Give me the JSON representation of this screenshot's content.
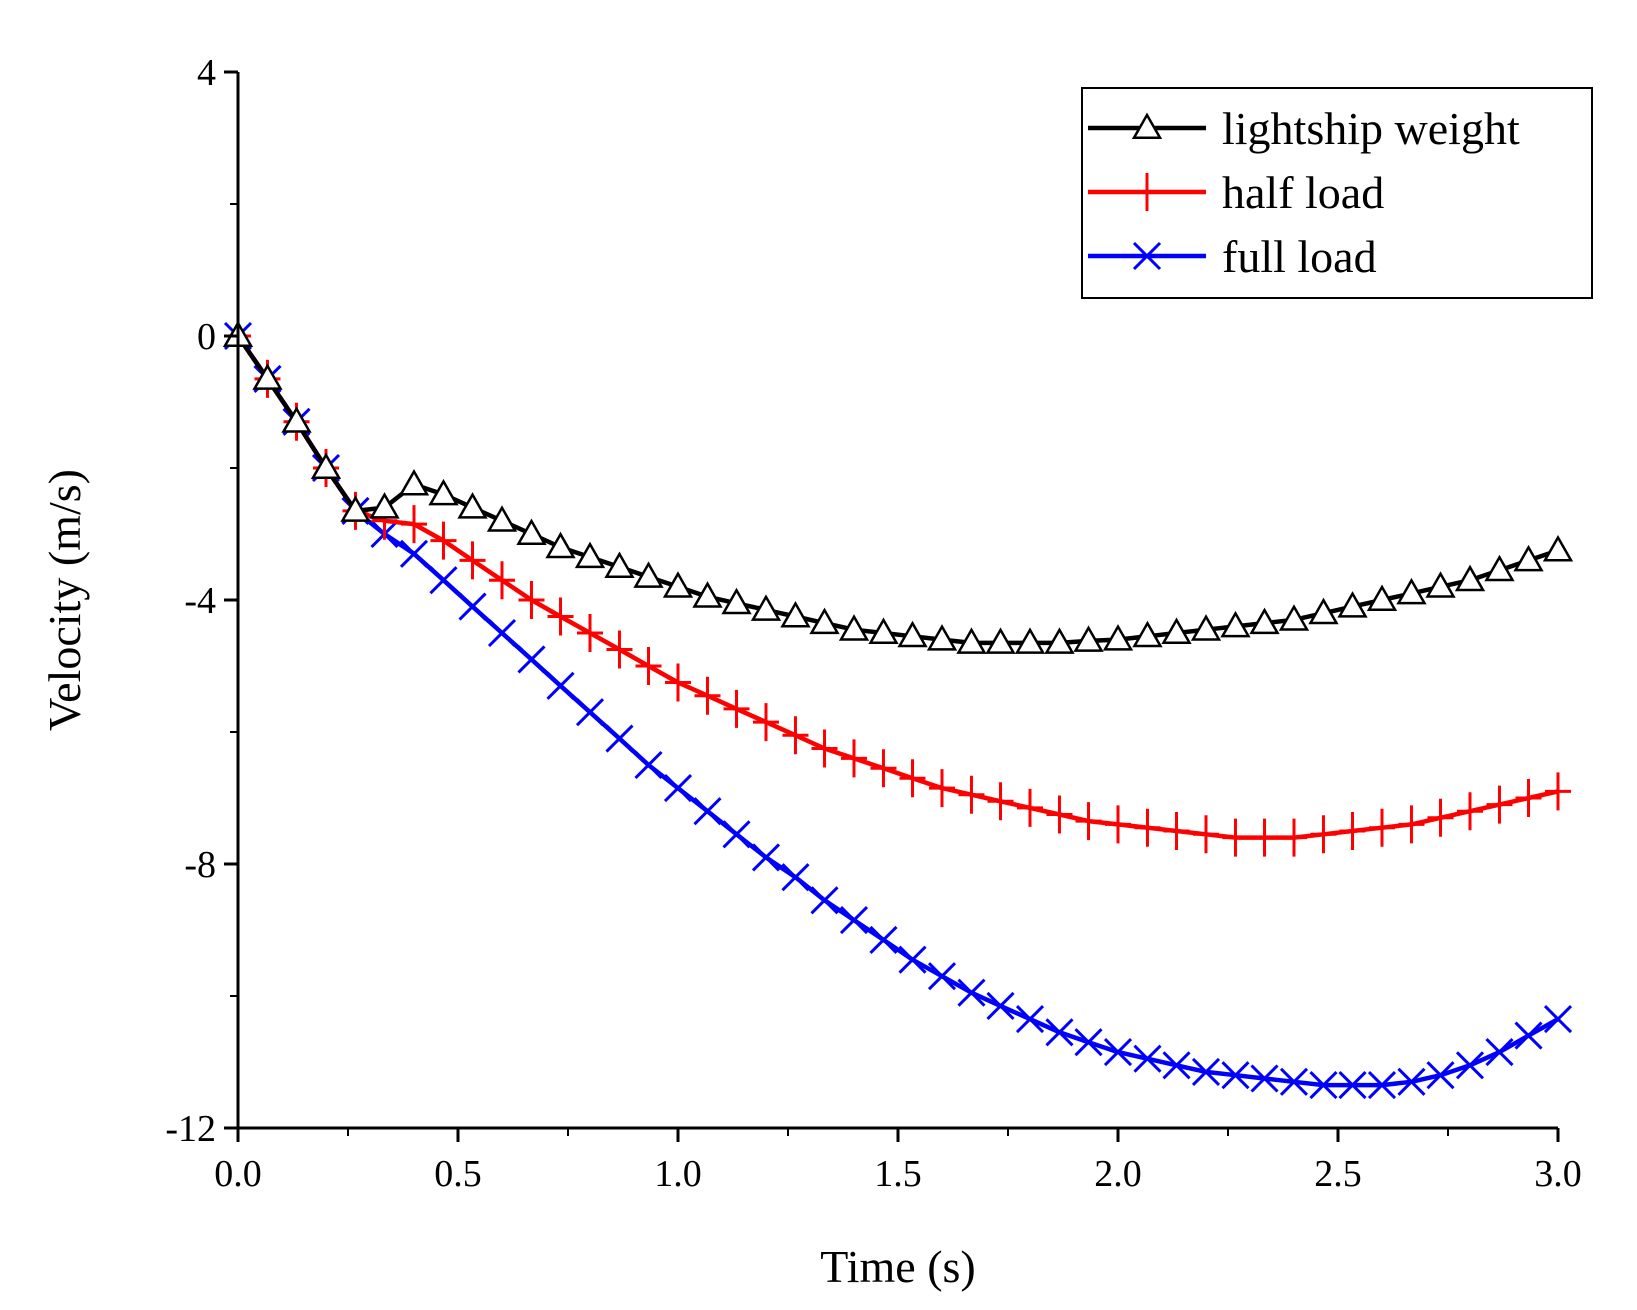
{
  "chart_data": {
    "type": "line",
    "title": "",
    "xlabel": "Time (s)",
    "ylabel": "Velocity (m/s)",
    "xlim": [
      0,
      3
    ],
    "ylim": [
      -12,
      4
    ],
    "xticks": [
      0,
      0.5,
      1,
      1.5,
      2,
      2.5,
      3
    ],
    "xtick_labels": [
      "0.0",
      "0.5",
      "1.0",
      "1.5",
      "2.0",
      "2.5",
      "3.0"
    ],
    "yticks": [
      -12,
      -8,
      -4,
      0,
      4
    ],
    "ytick_labels": [
      "-12",
      "-8",
      "-4",
      "0",
      "4"
    ],
    "grid": false,
    "legend_position": "top-right",
    "series": [
      {
        "name": "lightship weight",
        "color": "#000000",
        "marker": "triangle",
        "x": [
          0,
          0.067,
          0.133,
          0.2,
          0.267,
          0.333,
          0.4,
          0.467,
          0.533,
          0.6,
          0.667,
          0.733,
          0.8,
          0.867,
          0.933,
          1.0,
          1.067,
          1.133,
          1.2,
          1.267,
          1.333,
          1.4,
          1.467,
          1.533,
          1.6,
          1.667,
          1.733,
          1.8,
          1.867,
          1.933,
          2.0,
          2.067,
          2.133,
          2.2,
          2.267,
          2.333,
          2.4,
          2.467,
          2.533,
          2.6,
          2.667,
          2.733,
          2.8,
          2.867,
          2.933,
          3.0
        ],
        "y": [
          0,
          -0.65,
          -1.3,
          -2.0,
          -2.65,
          -2.6,
          -2.25,
          -2.4,
          -2.6,
          -2.8,
          -3.0,
          -3.2,
          -3.35,
          -3.5,
          -3.65,
          -3.8,
          -3.95,
          -4.05,
          -4.15,
          -4.25,
          -4.35,
          -4.45,
          -4.5,
          -4.55,
          -4.6,
          -4.65,
          -4.65,
          -4.65,
          -4.65,
          -4.62,
          -4.6,
          -4.55,
          -4.5,
          -4.45,
          -4.4,
          -4.35,
          -4.3,
          -4.2,
          -4.1,
          -4.0,
          -3.9,
          -3.8,
          -3.7,
          -3.55,
          -3.4,
          -3.25
        ]
      },
      {
        "name": "half load",
        "color": "#ff0000",
        "marker": "plus",
        "x": [
          0,
          0.067,
          0.133,
          0.2,
          0.267,
          0.333,
          0.4,
          0.467,
          0.533,
          0.6,
          0.667,
          0.733,
          0.8,
          0.867,
          0.933,
          1.0,
          1.067,
          1.133,
          1.2,
          1.267,
          1.333,
          1.4,
          1.467,
          1.533,
          1.6,
          1.667,
          1.733,
          1.8,
          1.867,
          1.933,
          2.0,
          2.067,
          2.133,
          2.2,
          2.267,
          2.333,
          2.4,
          2.467,
          2.533,
          2.6,
          2.667,
          2.733,
          2.8,
          2.867,
          2.933,
          3.0
        ],
        "y": [
          0,
          -0.65,
          -1.3,
          -2.0,
          -2.65,
          -2.8,
          -2.85,
          -3.1,
          -3.4,
          -3.7,
          -4.0,
          -4.25,
          -4.5,
          -4.75,
          -5.0,
          -5.25,
          -5.45,
          -5.65,
          -5.85,
          -6.05,
          -6.25,
          -6.4,
          -6.55,
          -6.7,
          -6.85,
          -6.95,
          -7.05,
          -7.15,
          -7.25,
          -7.35,
          -7.4,
          -7.45,
          -7.5,
          -7.55,
          -7.6,
          -7.6,
          -7.6,
          -7.55,
          -7.5,
          -7.45,
          -7.4,
          -7.3,
          -7.2,
          -7.1,
          -7.0,
          -6.9
        ]
      },
      {
        "name": "full load",
        "color": "#0000ff",
        "marker": "cross",
        "x": [
          0,
          0.067,
          0.133,
          0.2,
          0.267,
          0.333,
          0.4,
          0.467,
          0.533,
          0.6,
          0.667,
          0.733,
          0.8,
          0.867,
          0.933,
          1.0,
          1.067,
          1.133,
          1.2,
          1.267,
          1.333,
          1.4,
          1.467,
          1.533,
          1.6,
          1.667,
          1.733,
          1.8,
          1.867,
          1.933,
          2.0,
          2.067,
          2.133,
          2.2,
          2.267,
          2.333,
          2.4,
          2.467,
          2.533,
          2.6,
          2.667,
          2.733,
          2.8,
          2.867,
          2.933,
          3.0
        ],
        "y": [
          0,
          -0.65,
          -1.3,
          -2.0,
          -2.65,
          -3.0,
          -3.3,
          -3.7,
          -4.1,
          -4.5,
          -4.9,
          -5.3,
          -5.7,
          -6.1,
          -6.5,
          -6.85,
          -7.2,
          -7.55,
          -7.9,
          -8.2,
          -8.55,
          -8.85,
          -9.15,
          -9.45,
          -9.7,
          -9.95,
          -10.15,
          -10.35,
          -10.55,
          -10.7,
          -10.85,
          -10.95,
          -11.05,
          -11.15,
          -11.2,
          -11.25,
          -11.3,
          -11.35,
          -11.35,
          -11.35,
          -11.3,
          -11.2,
          -11.05,
          -10.85,
          -10.6,
          -10.35
        ]
      }
    ]
  }
}
